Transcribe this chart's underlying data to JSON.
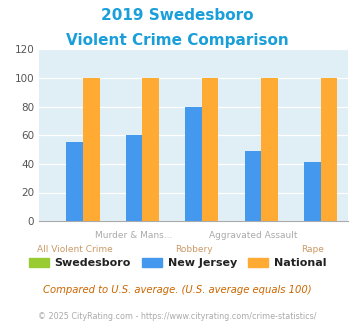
{
  "title_line1": "2019 Swedesboro",
  "title_line2": "Violent Crime Comparison",
  "title_color": "#1a9fda",
  "groups": [
    "All Violent Crime",
    "Murder & Mans...",
    "Robbery",
    "Aggravated Assault",
    "Rape"
  ],
  "top_labels": [
    "",
    "Murder & Mans...",
    "",
    "Aggravated Assault",
    ""
  ],
  "bottom_labels": [
    "All Violent Crime",
    "",
    "Robbery",
    "",
    "Rape"
  ],
  "swedesboro": [
    0,
    0,
    0,
    0,
    0
  ],
  "new_jersey": [
    55,
    60,
    80,
    49,
    41
  ],
  "national": [
    100,
    100,
    100,
    100,
    100
  ],
  "swedesboro_color": "#99cc33",
  "nj_color": "#4499ee",
  "national_color": "#ffaa33",
  "ylim": [
    0,
    120
  ],
  "yticks": [
    0,
    20,
    40,
    60,
    80,
    100,
    120
  ],
  "fig_bg_color": "#ffffff",
  "plot_bg_color": "#e0eef5",
  "legend_labels": [
    "Swedesboro",
    "New Jersey",
    "National"
  ],
  "footnote1": "Compared to U.S. average. (U.S. average equals 100)",
  "footnote2": "© 2025 CityRating.com - https://www.cityrating.com/crime-statistics/",
  "footnote1_color": "#cc6600",
  "footnote2_color": "#aaaaaa",
  "top_label_color": "#aaaaaa",
  "bottom_label_color": "#cc9966"
}
